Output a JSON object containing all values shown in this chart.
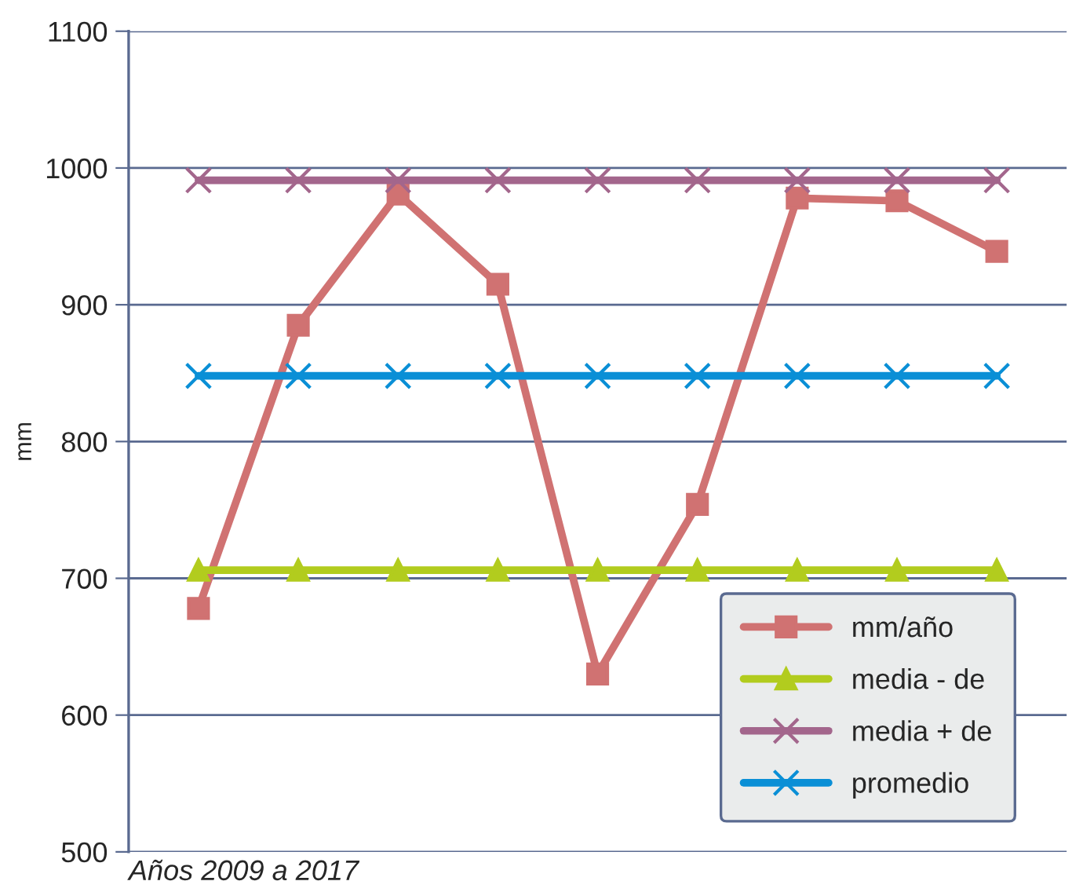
{
  "chart_data": {
    "type": "line",
    "xlabel": "Años 2009 a 2017",
    "ylabel": "mm",
    "categories": [
      null,
      null,
      null,
      null,
      null,
      null,
      null,
      null,
      null
    ],
    "ylim": [
      500,
      1100
    ],
    "yticks": [
      500,
      600,
      700,
      800,
      900,
      1000,
      1100
    ],
    "grid": "y",
    "legend": "bottom right",
    "line_style": "solid",
    "series": [
      {
        "name": "mm/año",
        "color": "#d07272",
        "marker": "square",
        "values": [
          678,
          885,
          981,
          915,
          630,
          754,
          978,
          976,
          939
        ]
      },
      {
        "name": "media - de",
        "color": "#b2cc1e",
        "marker": "triangle",
        "values": [
          706,
          706,
          706,
          706,
          706,
          706,
          706,
          706,
          706
        ]
      },
      {
        "name": "media + de",
        "color": "#a3668c",
        "marker": "cross",
        "values": [
          991,
          991,
          991,
          991,
          991,
          991,
          991,
          991,
          991
        ]
      },
      {
        "name": "promedio",
        "color": "#0a8fd6",
        "marker": "cross",
        "values": [
          848,
          848,
          848,
          848,
          848,
          848,
          848,
          848,
          848
        ]
      }
    ]
  }
}
